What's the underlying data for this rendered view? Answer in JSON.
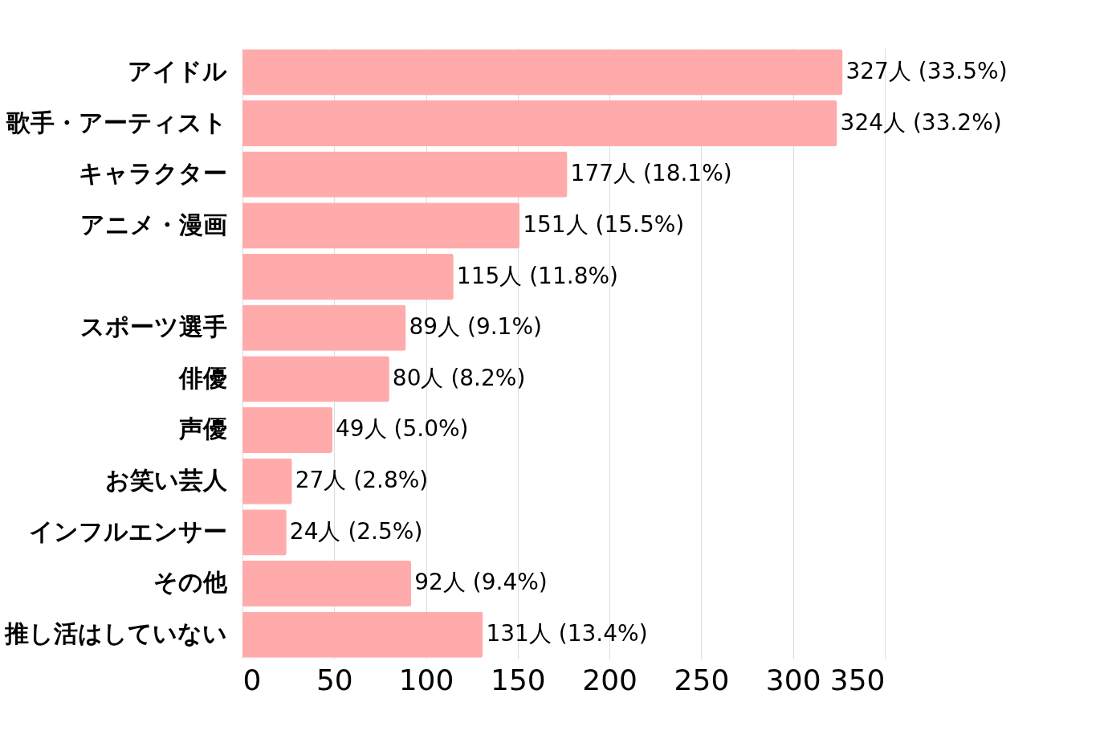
{
  "chart_data": {
    "type": "bar",
    "orientation": "horizontal",
    "categories": [
      "アイドル",
      "歌手・アーティスト",
      "キャラクター",
      "アニメ・漫画",
      null,
      "スポーツ選手",
      "俳優",
      "声優",
      "お笑い芸人",
      "インフルエンサー",
      "その他",
      "推し活はしていない"
    ],
    "values": [
      327,
      324,
      177,
      151,
      115,
      89,
      80,
      49,
      27,
      24,
      92,
      131
    ],
    "value_labels": [
      "327人 (33.5%)",
      "324人 (33.2%)",
      "177人 (18.1%)",
      "151人 (15.5%)",
      "115人 (11.8%)",
      "89人 (9.1%)",
      "80人 (8.2%)",
      "49人 (5.0%)",
      "27人 (2.8%)",
      "24人 (2.5%)",
      "92人 (9.4%)",
      "131人 (13.4%)"
    ],
    "color": "#ffabab",
    "xlim": [
      0,
      350
    ],
    "xticks": [
      0,
      50,
      100,
      150,
      200,
      250,
      300,
      350
    ],
    "grid": "x"
  }
}
